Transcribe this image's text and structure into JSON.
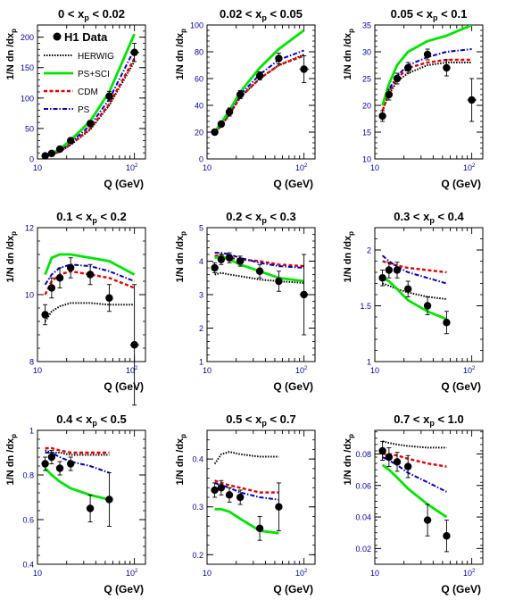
{
  "figure": {
    "ylabel": "1/N dn /dx",
    "ylabel_sub": "p",
    "xlabel": "Q (GeV)",
    "legend": {
      "data": "H1 Data",
      "herwig": "HERWIG",
      "pssci": "PS+SCI",
      "cdm": "CDM",
      "ps": "PS"
    },
    "colors": {
      "data": "#000000",
      "herwig": "#000000",
      "pssci": "#00e600",
      "cdm": "#e60000",
      "ps": "#0000cc",
      "ticklabel": "#0000aa"
    }
  },
  "chart_data": [
    {
      "type": "line",
      "title_parts": [
        "0 < x",
        "p",
        " < 0.02"
      ],
      "xscale": "log",
      "xlim": [
        10,
        130
      ],
      "ylim": [
        0,
        220
      ],
      "yticks": [
        0,
        50,
        100,
        150,
        200
      ],
      "data": {
        "x": [
          12,
          14,
          17,
          22,
          35,
          55,
          100
        ],
        "y": [
          5,
          9,
          16,
          30,
          58,
          103,
          175
        ],
        "err": [
          2,
          2,
          3,
          4,
          5,
          8,
          15
        ],
        "xerr": [
          null,
          null,
          null,
          null,
          null,
          null,
          [
            90,
            112
          ]
        ]
      },
      "herwig": {
        "x": [
          12,
          14,
          17,
          22,
          35,
          55,
          100
        ],
        "y": [
          4,
          7,
          12,
          23,
          48,
          88,
          160
        ]
      },
      "pssci": {
        "x": [
          12,
          14,
          17,
          22,
          35,
          55,
          100
        ],
        "y": [
          5,
          9,
          16,
          31,
          62,
          110,
          205
        ]
      },
      "cdm": {
        "x": [
          12,
          14,
          17,
          22,
          35,
          55,
          100
        ],
        "y": [
          4,
          7,
          12,
          24,
          50,
          90,
          165
        ]
      },
      "ps": {
        "x": [
          12,
          14,
          17,
          22,
          35,
          55,
          100
        ],
        "y": [
          5,
          8,
          14,
          27,
          55,
          98,
          180
        ]
      }
    },
    {
      "type": "line",
      "title_parts": [
        "0.02 < x",
        "p",
        " < 0.05"
      ],
      "xscale": "log",
      "xlim": [
        10,
        130
      ],
      "ylim": [
        0,
        100
      ],
      "yticks": [
        0,
        20,
        40,
        60,
        80,
        100
      ],
      "data": {
        "x": [
          12,
          14,
          17,
          22,
          35,
          55,
          100
        ],
        "y": [
          20,
          26,
          35,
          48,
          62,
          75,
          67
        ],
        "err": [
          2,
          2,
          3,
          3,
          3,
          4,
          10
        ],
        "xerr": [
          null,
          null,
          null,
          null,
          null,
          null,
          [
            90,
            112
          ]
        ]
      },
      "herwig": {
        "x": [
          12,
          14,
          17,
          22,
          35,
          55,
          100
        ],
        "y": [
          19,
          25,
          33,
          46,
          60,
          70,
          78
        ]
      },
      "pssci": {
        "x": [
          12,
          14,
          17,
          22,
          35,
          55,
          100
        ],
        "y": [
          20,
          27,
          36,
          50,
          68,
          82,
          96
        ]
      },
      "cdm": {
        "x": [
          12,
          14,
          17,
          22,
          35,
          55,
          100
        ],
        "y": [
          19,
          25,
          33,
          46,
          60,
          70,
          77
        ]
      },
      "ps": {
        "x": [
          12,
          14,
          17,
          22,
          35,
          55,
          100
        ],
        "y": [
          20,
          26,
          35,
          48,
          63,
          74,
          81
        ]
      }
    },
    {
      "type": "line",
      "title_parts": [
        "0.05 < x",
        "p",
        " < 0.1"
      ],
      "xscale": "log",
      "xlim": [
        10,
        130
      ],
      "ylim": [
        10,
        35
      ],
      "yticks": [
        10,
        15,
        20,
        25,
        30,
        35
      ],
      "data": {
        "x": [
          12,
          14,
          17,
          22,
          35,
          55,
          100
        ],
        "y": [
          18,
          22,
          25,
          27,
          29.5,
          27,
          21
        ],
        "err": [
          1,
          1,
          1,
          1,
          1,
          1.5,
          4
        ],
        "xerr": [
          null,
          null,
          null,
          null,
          null,
          null,
          [
            90,
            112
          ]
        ]
      },
      "herwig": {
        "x": [
          12,
          14,
          17,
          22,
          35,
          55,
          100
        ],
        "y": [
          19,
          22,
          24.5,
          26,
          27.5,
          28,
          28
        ]
      },
      "pssci": {
        "x": [
          12,
          14,
          17,
          22,
          35,
          55,
          100
        ],
        "y": [
          20,
          24,
          27.5,
          30,
          32,
          33,
          35
        ]
      },
      "cdm": {
        "x": [
          12,
          14,
          17,
          22,
          35,
          55,
          100
        ],
        "y": [
          19,
          22.5,
          25,
          27,
          28,
          28.5,
          28.5
        ]
      },
      "ps": {
        "x": [
          12,
          14,
          17,
          22,
          35,
          55,
          100
        ],
        "y": [
          20,
          23,
          25.5,
          27.5,
          29,
          30,
          30.5
        ]
      }
    },
    {
      "type": "line",
      "title_parts": [
        "0.1 < x",
        "p",
        " < 0.2"
      ],
      "xscale": "log",
      "xlim": [
        10,
        130
      ],
      "ylim": [
        8,
        12
      ],
      "yticks": [
        8,
        10,
        12
      ],
      "data": {
        "x": [
          12,
          14,
          17,
          22,
          35,
          55,
          100
        ],
        "y": [
          9.4,
          10.2,
          10.5,
          10.8,
          10.6,
          9.9,
          8.5
        ],
        "err": [
          0.3,
          0.3,
          0.3,
          0.3,
          0.3,
          0.4,
          1.8
        ],
        "xerr": [
          null,
          null,
          null,
          null,
          null,
          null,
          [
            90,
            112
          ]
        ]
      },
      "herwig": {
        "x": [
          12,
          14,
          17,
          22,
          35,
          55,
          100
        ],
        "y": [
          9.2,
          9.5,
          9.65,
          9.75,
          9.75,
          9.7,
          9.7
        ]
      },
      "pssci": {
        "x": [
          12,
          14,
          17,
          22,
          35,
          55,
          100
        ],
        "y": [
          10.6,
          11.1,
          11.2,
          11.2,
          11.1,
          11.0,
          10.6
        ]
      },
      "cdm": {
        "x": [
          12,
          14,
          17,
          22,
          35,
          55,
          100
        ],
        "y": [
          10.0,
          10.4,
          10.6,
          10.7,
          10.6,
          10.5,
          10.2
        ]
      },
      "ps": {
        "x": [
          12,
          14,
          17,
          22,
          35,
          55,
          100
        ],
        "y": [
          10.3,
          10.6,
          10.8,
          10.9,
          10.85,
          10.7,
          10.4
        ]
      }
    },
    {
      "type": "line",
      "title_parts": [
        "0.2 < x",
        "p",
        " < 0.3"
      ],
      "xscale": "log",
      "xlim": [
        10,
        130
      ],
      "ylim": [
        1,
        5
      ],
      "yticks": [
        1,
        2,
        3,
        4,
        5
      ],
      "data": {
        "x": [
          12,
          14,
          17,
          22,
          35,
          55,
          100
        ],
        "y": [
          3.8,
          4.05,
          4.1,
          4.0,
          3.7,
          3.4,
          3.0
        ],
        "err": [
          0.15,
          0.15,
          0.15,
          0.15,
          0.2,
          0.3,
          1.2
        ],
        "xerr": [
          null,
          null,
          null,
          null,
          null,
          null,
          [
            90,
            112
          ]
        ]
      },
      "herwig": {
        "x": [
          12,
          14,
          17,
          22,
          35,
          55,
          100
        ],
        "y": [
          3.6,
          3.65,
          3.6,
          3.55,
          3.45,
          3.4,
          3.35
        ]
      },
      "pssci": {
        "x": [
          12,
          14,
          17,
          22,
          35,
          55,
          100
        ],
        "y": [
          4.1,
          4.15,
          4.05,
          3.9,
          3.7,
          3.5,
          3.4
        ]
      },
      "cdm": {
        "x": [
          12,
          14,
          17,
          22,
          35,
          55,
          100
        ],
        "y": [
          4.15,
          4.2,
          4.1,
          4.05,
          4.0,
          3.9,
          3.85
        ]
      },
      "ps": {
        "x": [
          12,
          14,
          17,
          22,
          35,
          55,
          100
        ],
        "y": [
          4.25,
          4.25,
          4.2,
          4.1,
          3.95,
          3.85,
          3.8
        ]
      }
    },
    {
      "type": "line",
      "title_parts": [
        "0.3 < x",
        "p",
        " < 0.4"
      ],
      "xscale": "log",
      "xlim": [
        10,
        130
      ],
      "ylim": [
        1,
        2.2
      ],
      "yticks": [
        1,
        1.5,
        2
      ],
      "data": {
        "x": [
          12,
          14,
          17,
          22,
          35,
          55
        ],
        "y": [
          1.75,
          1.82,
          1.82,
          1.65,
          1.5,
          1.35
        ],
        "err": [
          0.07,
          0.07,
          0.07,
          0.07,
          0.08,
          0.1
        ]
      },
      "herwig": {
        "x": [
          12,
          14,
          17,
          22,
          35,
          55
        ],
        "y": [
          1.7,
          1.68,
          1.65,
          1.62,
          1.58,
          1.56
        ]
      },
      "pssci": {
        "x": [
          12,
          14,
          17,
          22,
          35,
          55
        ],
        "y": [
          1.75,
          1.72,
          1.65,
          1.55,
          1.45,
          1.38
        ]
      },
      "cdm": {
        "x": [
          12,
          14,
          17,
          22,
          35,
          55
        ],
        "y": [
          1.9,
          1.88,
          1.86,
          1.84,
          1.82,
          1.8
        ]
      },
      "ps": {
        "x": [
          12,
          14,
          17,
          22,
          35,
          55
        ],
        "y": [
          1.95,
          1.9,
          1.85,
          1.8,
          1.75,
          1.7
        ]
      }
    },
    {
      "type": "line",
      "title_parts": [
        "0.4 < x",
        "p",
        " < 0.5"
      ],
      "xscale": "log",
      "xlim": [
        10,
        130
      ],
      "ylim": [
        0.4,
        1.0
      ],
      "yticks": [
        0.4,
        0.6,
        0.8,
        1
      ],
      "data": {
        "x": [
          12,
          14,
          17,
          22,
          35,
          55
        ],
        "y": [
          0.85,
          0.88,
          0.83,
          0.85,
          0.65,
          0.69
        ],
        "err": [
          0.03,
          0.03,
          0.03,
          0.03,
          0.06,
          0.12
        ]
      },
      "herwig": {
        "x": [
          12,
          14,
          17,
          22,
          35,
          55
        ],
        "y": [
          0.91,
          0.9,
          0.9,
          0.89,
          0.89,
          0.89
        ]
      },
      "pssci": {
        "x": [
          12,
          14,
          17,
          22,
          35,
          55
        ],
        "y": [
          0.83,
          0.8,
          0.77,
          0.74,
          0.71,
          0.69
        ]
      },
      "cdm": {
        "x": [
          12,
          14,
          17,
          22,
          35,
          55
        ],
        "y": [
          0.92,
          0.92,
          0.91,
          0.9,
          0.9,
          0.9
        ]
      },
      "ps": {
        "x": [
          12,
          14,
          17,
          22,
          35,
          55
        ],
        "y": [
          0.9,
          0.9,
          0.88,
          0.86,
          0.84,
          0.81
        ]
      }
    },
    {
      "type": "line",
      "title_parts": [
        "0.5 < x",
        "p",
        " < 0.7"
      ],
      "xscale": "log",
      "xlim": [
        10,
        130
      ],
      "ylim": [
        0.18,
        0.46
      ],
      "yticks": [
        0.2,
        0.3,
        0.4
      ],
      "data": {
        "x": [
          12,
          14,
          17,
          22,
          35,
          55
        ],
        "y": [
          0.335,
          0.34,
          0.325,
          0.32,
          0.255,
          0.3
        ],
        "err": [
          0.015,
          0.015,
          0.015,
          0.015,
          0.025,
          0.05
        ]
      },
      "herwig": {
        "x": [
          12,
          14,
          17,
          22,
          35,
          55
        ],
        "y": [
          0.39,
          0.41,
          0.415,
          0.41,
          0.405,
          0.405
        ]
      },
      "pssci": {
        "x": [
          12,
          14,
          17,
          22,
          35,
          55
        ],
        "y": [
          0.295,
          0.295,
          0.29,
          0.275,
          0.25,
          0.245
        ]
      },
      "cdm": {
        "x": [
          12,
          14,
          17,
          22,
          35,
          55
        ],
        "y": [
          0.355,
          0.35,
          0.345,
          0.34,
          0.33,
          0.33
        ]
      },
      "ps": {
        "x": [
          12,
          14,
          17,
          22,
          35,
          55
        ],
        "y": [
          0.35,
          0.345,
          0.34,
          0.33,
          0.32,
          0.315
        ]
      }
    },
    {
      "type": "line",
      "title_parts": [
        "0.7 < x",
        "p",
        " < 1.0"
      ],
      "xscale": "log",
      "xlim": [
        10,
        130
      ],
      "ylim": [
        0.01,
        0.095
      ],
      "yticks": [
        0.02,
        0.04,
        0.06,
        0.08
      ],
      "data": {
        "x": [
          12,
          14,
          17,
          22,
          35,
          55
        ],
        "y": [
          0.082,
          0.078,
          0.075,
          0.072,
          0.038,
          0.028
        ],
        "err": [
          0.006,
          0.006,
          0.006,
          0.007,
          0.01,
          0.01
        ]
      },
      "herwig": {
        "x": [
          12,
          14,
          17,
          22,
          35,
          55
        ],
        "y": [
          0.088,
          0.087,
          0.086,
          0.085,
          0.084,
          0.084
        ]
      },
      "pssci": {
        "x": [
          12,
          14,
          17,
          22,
          35,
          55
        ],
        "y": [
          0.073,
          0.07,
          0.065,
          0.058,
          0.048,
          0.04
        ]
      },
      "cdm": {
        "x": [
          12,
          14,
          17,
          22,
          35,
          55
        ],
        "y": [
          0.08,
          0.08,
          0.079,
          0.077,
          0.074,
          0.072
        ]
      },
      "ps": {
        "x": [
          12,
          14,
          17,
          22,
          35,
          55
        ],
        "y": [
          0.078,
          0.076,
          0.073,
          0.068,
          0.062,
          0.056
        ]
      }
    }
  ]
}
